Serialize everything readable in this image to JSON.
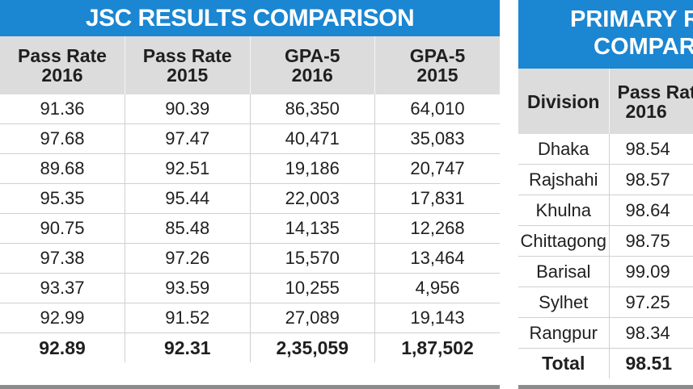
{
  "jsc": {
    "title": "JSC RESULTS COMPARISON",
    "headers": [
      [
        "Pass Rate",
        "2016"
      ],
      [
        "Pass Rate",
        "2015"
      ],
      [
        "GPA-5",
        "2016"
      ],
      [
        "GPA-5",
        "2015"
      ]
    ],
    "rows": [
      [
        "91.36",
        "90.39",
        "86,350",
        "64,010"
      ],
      [
        "97.68",
        "97.47",
        "40,471",
        "35,083"
      ],
      [
        "89.68",
        "92.51",
        "19,186",
        "20,747"
      ],
      [
        "95.35",
        "95.44",
        "22,003",
        "17,831"
      ],
      [
        "90.75",
        "85.48",
        "14,135",
        "12,268"
      ],
      [
        "97.38",
        "97.26",
        "15,570",
        "13,464"
      ],
      [
        "93.37",
        "93.59",
        "10,255",
        "4,956"
      ],
      [
        "92.99",
        "91.52",
        "27,089",
        "19,143"
      ]
    ],
    "total": [
      "92.89",
      "92.31",
      "2,35,059",
      "1,87,502"
    ]
  },
  "primary": {
    "title_line1": "PRIMARY R",
    "title_line2": "COMPAR",
    "headers": [
      [
        "Division",
        ""
      ],
      [
        "Pass Rat",
        "2016"
      ]
    ],
    "rows": [
      [
        "Dhaka",
        "98.54"
      ],
      [
        "Rajshahi",
        "98.57"
      ],
      [
        "Khulna",
        "98.64"
      ],
      [
        "Chittagong",
        "98.75"
      ],
      [
        "Barisal",
        "99.09"
      ],
      [
        "Sylhet",
        "97.25"
      ],
      [
        "Rangpur",
        "98.34"
      ]
    ],
    "total": [
      "Total",
      "98.51"
    ]
  },
  "colors": {
    "header_blue": "#1b86d1",
    "column_header_gray": "#dcdcdc",
    "bottom_bar": "#8c8c8c"
  }
}
